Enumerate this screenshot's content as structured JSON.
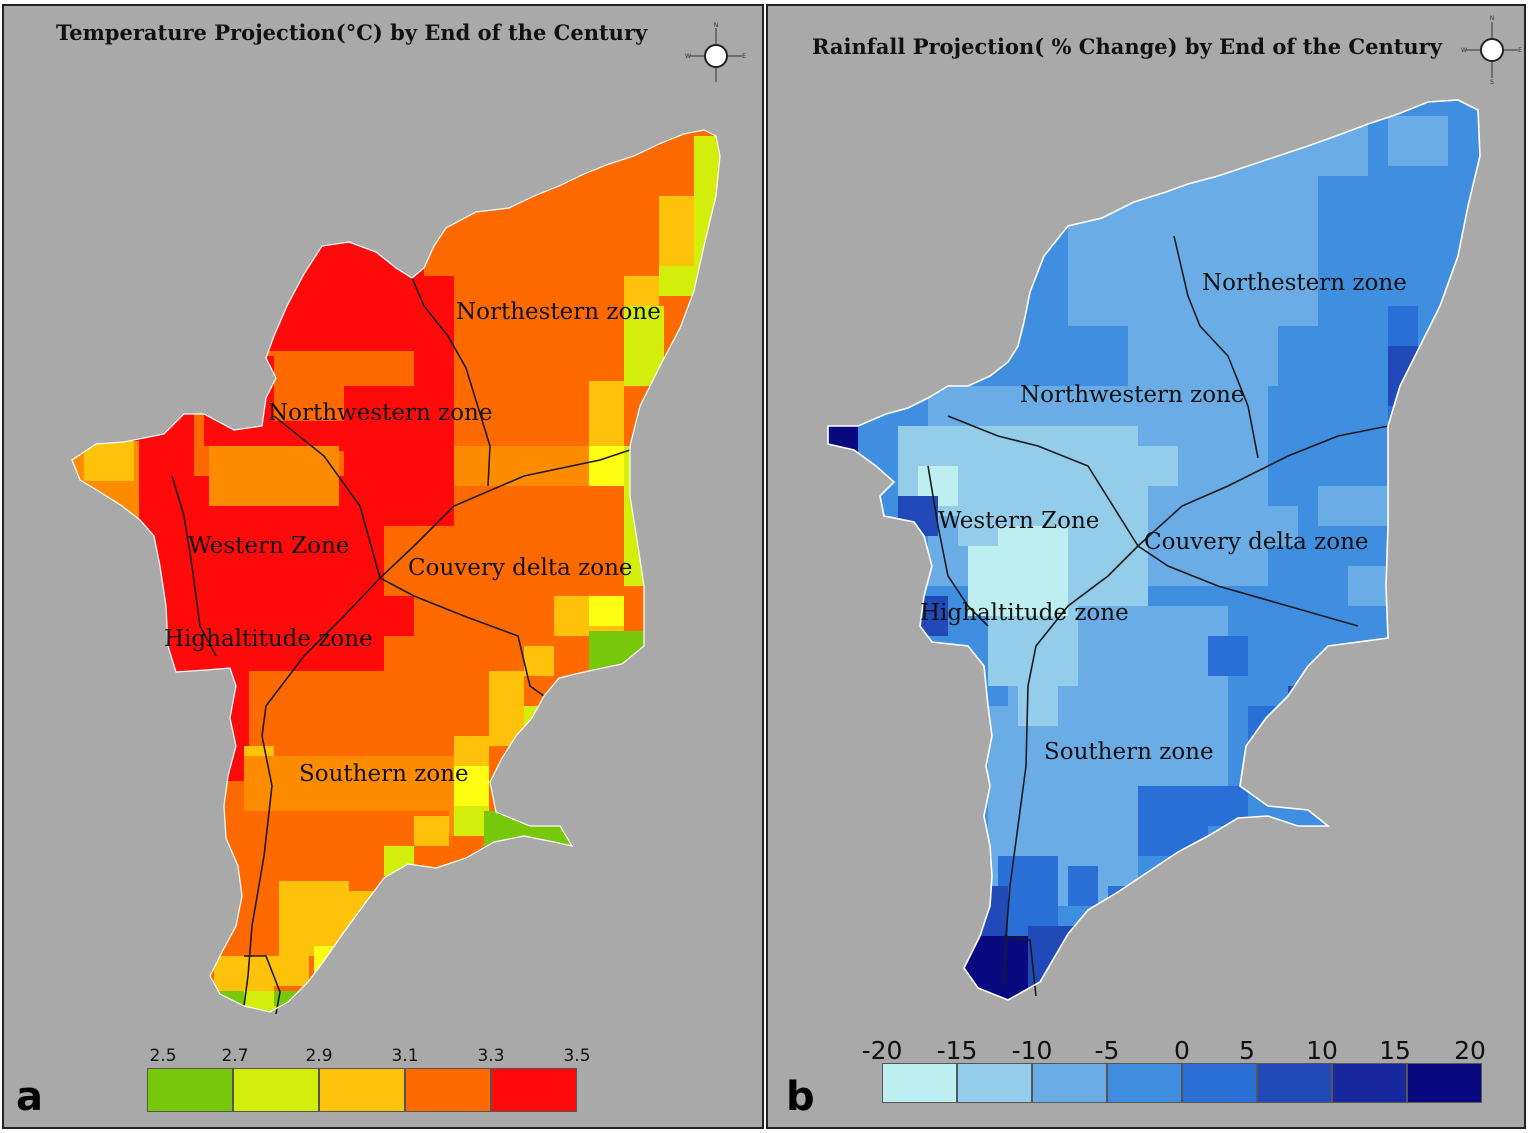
{
  "panel_a": {
    "title": "Temperature Projection(°C) by End of the Century",
    "letter": "a",
    "zones": {
      "northeastern": "Northestern zone",
      "northwestern": "Northwestern zone",
      "western": "Western Zone",
      "couvery": "Couvery delta zone",
      "highaltitude": "Highaltitude zone",
      "southern": "Southern zone"
    },
    "legend": {
      "ticks": [
        "2.5",
        "2.7",
        "2.9",
        "3.1",
        "3.3",
        "3.5"
      ],
      "colors": [
        "#77c70a",
        "#d4ee0c",
        "#ffc20a",
        "#ff6a00",
        "#ff0a0a"
      ]
    },
    "compass": {
      "n": "N",
      "s": "S",
      "e": "E",
      "w": "W"
    }
  },
  "panel_b": {
    "title": "Rainfall Projection( % Change) by End of the Century",
    "letter": "b",
    "zones": {
      "northeastern": "Northestern zone",
      "northwestern": "Northwestern zone",
      "western": "Western Zone",
      "couvery": "Couvery delta zone",
      "highaltitude": "Highaltitude zone",
      "southern": "Southern zone"
    },
    "legend": {
      "ticks": [
        "-20",
        "-15",
        "-10",
        "-5",
        "0",
        "5",
        "10",
        "15",
        "20"
      ],
      "colors": [
        "#bdeef0",
        "#93cdea",
        "#6aade6",
        "#3f8ee0",
        "#2a6fd6",
        "#2149b8",
        "#18289e",
        "#0a0a80"
      ]
    },
    "compass": {
      "n": "N",
      "s": "S",
      "e": "E",
      "w": "W"
    }
  }
}
